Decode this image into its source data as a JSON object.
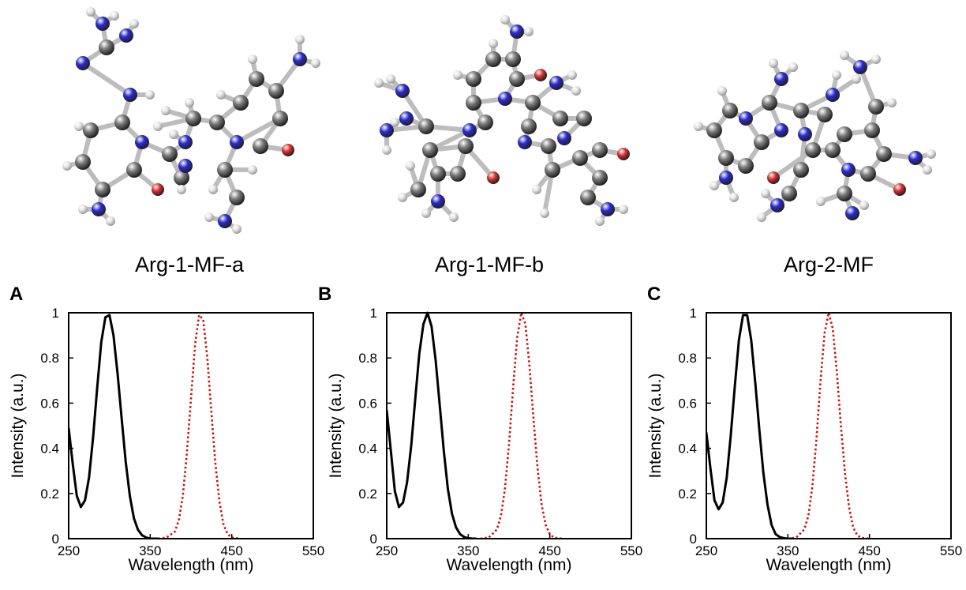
{
  "molecules": [
    {
      "name": "Arg-1-MF-a"
    },
    {
      "name": "Arg-1-MF-b"
    },
    {
      "name": "Arg-2-MF"
    }
  ],
  "atom_colors": {
    "carbon": "#7a7a7a",
    "nitrogen": "#2a2ad8",
    "oxygen": "#e03030",
    "hydrogen": "#e6e6e6"
  },
  "series_colors": {
    "absorption": "#000000",
    "emission": "#cc1111"
  },
  "chart_data": [
    {
      "type": "line",
      "panel": "A",
      "xlabel": "Wavelength (nm)",
      "ylabel": "Intensity (a.u.)",
      "xlim": [
        250,
        550
      ],
      "ylim": [
        0,
        1
      ],
      "xticks": [
        "250",
        "350",
        "450",
        "550"
      ],
      "yticks": [
        "0",
        "0.2",
        "0.4",
        "0.6",
        "0.8",
        "1"
      ],
      "grid": false,
      "series": [
        {
          "style": "solid",
          "x": [
            250,
            255,
            260,
            265,
            270,
            275,
            280,
            285,
            290,
            295,
            300,
            305,
            310,
            315,
            320,
            325,
            330,
            335,
            340,
            345,
            350,
            355,
            360
          ],
          "y": [
            0.49,
            0.33,
            0.19,
            0.14,
            0.17,
            0.27,
            0.45,
            0.67,
            0.87,
            0.98,
            0.99,
            0.9,
            0.73,
            0.53,
            0.34,
            0.19,
            0.09,
            0.04,
            0.015,
            0.005,
            0,
            0,
            0
          ]
        },
        {
          "style": "dotted",
          "x": [
            360,
            370,
            380,
            385,
            390,
            395,
            400,
            405,
            410,
            415,
            420,
            425,
            430,
            435,
            440,
            445,
            450,
            460
          ],
          "y": [
            0,
            0.005,
            0.03,
            0.08,
            0.19,
            0.38,
            0.62,
            0.86,
            0.99,
            0.97,
            0.8,
            0.56,
            0.33,
            0.16,
            0.06,
            0.02,
            0.005,
            0
          ]
        }
      ]
    },
    {
      "type": "line",
      "panel": "B",
      "xlabel": "Wavelength (nm)",
      "ylabel": "Intensity (a.u.)",
      "xlim": [
        250,
        550
      ],
      "ylim": [
        0,
        1
      ],
      "xticks": [
        "250",
        "350",
        "450",
        "550"
      ],
      "yticks": [
        "0",
        "0.2",
        "0.4",
        "0.6",
        "0.8",
        "1"
      ],
      "grid": false,
      "series": [
        {
          "style": "solid",
          "x": [
            250,
            255,
            260,
            265,
            270,
            275,
            280,
            285,
            290,
            295,
            300,
            305,
            310,
            315,
            320,
            325,
            330,
            335,
            340,
            345,
            350,
            355,
            360
          ],
          "y": [
            0.57,
            0.39,
            0.21,
            0.14,
            0.16,
            0.25,
            0.41,
            0.62,
            0.82,
            0.95,
            1.0,
            0.94,
            0.79,
            0.59,
            0.39,
            0.22,
            0.11,
            0.05,
            0.02,
            0.007,
            0.002,
            0,
            0
          ]
        },
        {
          "style": "dotted",
          "x": [
            365,
            375,
            385,
            390,
            395,
            400,
            405,
            410,
            415,
            420,
            425,
            430,
            435,
            440,
            445,
            450,
            455,
            465
          ],
          "y": [
            0,
            0.005,
            0.04,
            0.1,
            0.22,
            0.42,
            0.67,
            0.89,
            1.0,
            0.95,
            0.77,
            0.53,
            0.31,
            0.15,
            0.06,
            0.02,
            0.005,
            0
          ]
        }
      ]
    },
    {
      "type": "line",
      "panel": "C",
      "xlabel": "Wavelength (nm)",
      "ylabel": "Intensity (a.u.)",
      "xlim": [
        250,
        550
      ],
      "ylim": [
        0,
        1
      ],
      "xticks": [
        "250",
        "350",
        "450",
        "550"
      ],
      "yticks": [
        "0",
        "0.2",
        "0.4",
        "0.6",
        "0.8",
        "1"
      ],
      "grid": false,
      "series": [
        {
          "style": "solid",
          "x": [
            250,
            255,
            260,
            265,
            270,
            275,
            280,
            285,
            290,
            295,
            300,
            305,
            310,
            315,
            320,
            325,
            330,
            335,
            340,
            345,
            350,
            355
          ],
          "y": [
            0.47,
            0.31,
            0.17,
            0.13,
            0.16,
            0.27,
            0.46,
            0.68,
            0.88,
            0.99,
            0.99,
            0.88,
            0.69,
            0.48,
            0.29,
            0.15,
            0.06,
            0.02,
            0.007,
            0.002,
            0,
            0
          ]
        },
        {
          "style": "dotted",
          "x": [
            350,
            360,
            370,
            375,
            380,
            385,
            390,
            395,
            400,
            405,
            410,
            415,
            420,
            425,
            430,
            435,
            440,
            450
          ],
          "y": [
            0,
            0.005,
            0.04,
            0.1,
            0.23,
            0.44,
            0.7,
            0.91,
            1.0,
            0.93,
            0.74,
            0.5,
            0.29,
            0.14,
            0.05,
            0.015,
            0.004,
            0
          ]
        }
      ]
    }
  ]
}
